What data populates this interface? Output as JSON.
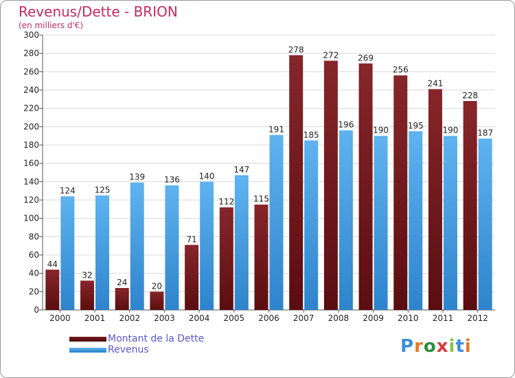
{
  "chart_data": {
    "type": "bar",
    "title": "Revenus/Dette - BRION",
    "subtitle": "(en milliers d'€)",
    "categories": [
      "2000",
      "2001",
      "2002",
      "2003",
      "2004",
      "2005",
      "2006",
      "2007",
      "2008",
      "2009",
      "2010",
      "2011",
      "2012"
    ],
    "series": [
      {
        "name": "Montant de la Dette",
        "color": "#7a1a1e",
        "values": [
          44,
          32,
          24,
          20,
          71,
          112,
          115,
          278,
          272,
          269,
          256,
          241,
          228
        ]
      },
      {
        "name": "Revenus",
        "color": "#3b9be3",
        "values": [
          124,
          125,
          139,
          136,
          140,
          147,
          191,
          185,
          196,
          190,
          195,
          190,
          187
        ]
      }
    ],
    "ylim": [
      0,
      300
    ],
    "yticks": [
      0,
      20,
      40,
      60,
      80,
      100,
      120,
      140,
      160,
      180,
      200,
      220,
      240,
      260,
      280,
      300
    ],
    "grid": true,
    "legend_position": "bottom-left"
  },
  "brand": {
    "name": "Proxiti",
    "colors": [
      "#3d8fd6",
      "#e07a2b",
      "#2f8f3c",
      "#d63a3a",
      "#8bc34a"
    ]
  }
}
